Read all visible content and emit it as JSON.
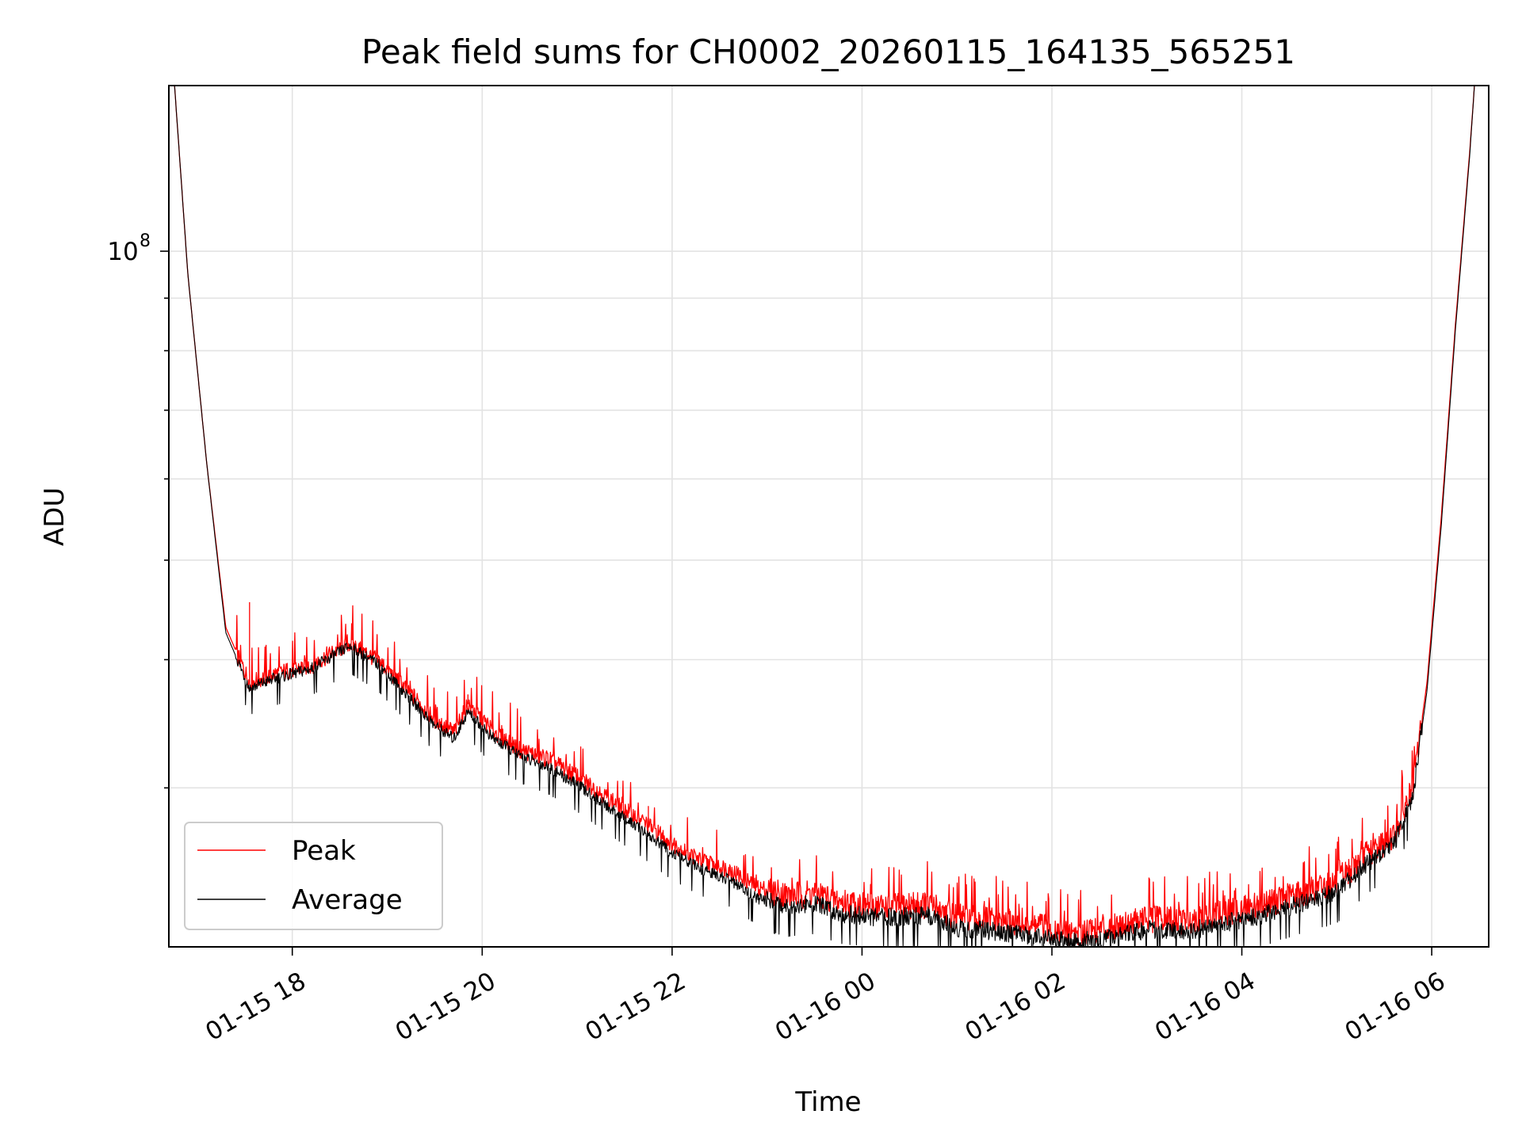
{
  "chart_data": {
    "type": "line",
    "title": "Peak field sums for CH0002_20260115_164135_565251",
    "xlabel": "Time",
    "ylabel": "ADU",
    "yscale": "log",
    "grid": true,
    "legend_position": "lower-left",
    "x_start_hours": 16.7,
    "x_end_hours": 30.6,
    "x_ticks": [
      {
        "hours": 18,
        "label": "01-15 18"
      },
      {
        "hours": 20,
        "label": "01-15 20"
      },
      {
        "hours": 22,
        "label": "01-15 22"
      },
      {
        "hours": 24,
        "label": "01-16 00"
      },
      {
        "hours": 26,
        "label": "01-16 02"
      },
      {
        "hours": 28,
        "label": "01-16 04"
      },
      {
        "hours": 30,
        "label": "01-16 06"
      }
    ],
    "ylim": [
      21000000,
      145000000
    ],
    "y_major_tick": {
      "value": 100000000,
      "base": "10",
      "exponent": "8"
    },
    "y_minor_ticks": [
      30000000,
      40000000,
      50000000,
      60000000,
      70000000,
      80000000,
      90000000,
      200000000
    ],
    "series": [
      {
        "name": "Peak",
        "color": "#ff0000",
        "points": [
          [
            16.76,
            145000000
          ],
          [
            16.9,
            95000000
          ],
          [
            17.1,
            62000000
          ],
          [
            17.3,
            43000000
          ],
          [
            17.55,
            38000000
          ],
          [
            17.8,
            38700000
          ],
          [
            18.2,
            39500000
          ],
          [
            18.6,
            41500000
          ],
          [
            18.9,
            40000000
          ],
          [
            19.2,
            37500000
          ],
          [
            19.5,
            35000000
          ],
          [
            19.7,
            34000000
          ],
          [
            19.85,
            36200000
          ],
          [
            20.1,
            34200000
          ],
          [
            20.4,
            32700000
          ],
          [
            20.7,
            32000000
          ],
          [
            21.0,
            30800000
          ],
          [
            21.4,
            29000000
          ],
          [
            21.7,
            27800000
          ],
          [
            22.0,
            26500000
          ],
          [
            22.3,
            25500000
          ],
          [
            22.6,
            25000000
          ],
          [
            22.9,
            24000000
          ],
          [
            23.2,
            23600000
          ],
          [
            23.5,
            23700000
          ],
          [
            23.8,
            23200000
          ],
          [
            24.2,
            23000000
          ],
          [
            24.7,
            23100000
          ],
          [
            25.0,
            22500000
          ],
          [
            25.4,
            22300000
          ],
          [
            25.8,
            22100000
          ],
          [
            26.2,
            21700000
          ],
          [
            26.6,
            22000000
          ],
          [
            27.0,
            22400000
          ],
          [
            27.4,
            22300000
          ],
          [
            27.8,
            22700000
          ],
          [
            28.2,
            23100000
          ],
          [
            28.6,
            23700000
          ],
          [
            29.0,
            24300000
          ],
          [
            29.3,
            25800000
          ],
          [
            29.6,
            27000000
          ],
          [
            29.8,
            30000000
          ],
          [
            29.95,
            38000000
          ],
          [
            30.1,
            55000000
          ],
          [
            30.25,
            85000000
          ],
          [
            30.4,
            125000000
          ],
          [
            30.45,
            145000000
          ]
        ]
      },
      {
        "name": "Average",
        "color": "#000000",
        "points": [
          [
            16.76,
            145000000
          ],
          [
            16.9,
            95000000
          ],
          [
            17.1,
            62000000
          ],
          [
            17.3,
            42500000
          ],
          [
            17.55,
            37500000
          ],
          [
            17.8,
            38300000
          ],
          [
            18.2,
            39200000
          ],
          [
            18.6,
            41200000
          ],
          [
            18.9,
            39600000
          ],
          [
            19.2,
            37000000
          ],
          [
            19.5,
            34500000
          ],
          [
            19.7,
            33500000
          ],
          [
            19.85,
            35600000
          ],
          [
            20.1,
            33600000
          ],
          [
            20.4,
            32200000
          ],
          [
            20.7,
            31400000
          ],
          [
            21.0,
            30200000
          ],
          [
            21.4,
            28400000
          ],
          [
            21.7,
            27200000
          ],
          [
            22.0,
            25900000
          ],
          [
            22.3,
            25000000
          ],
          [
            22.6,
            24400000
          ],
          [
            22.9,
            23400000
          ],
          [
            23.2,
            23000000
          ],
          [
            23.5,
            23100000
          ],
          [
            23.8,
            22600000
          ],
          [
            24.2,
            22400000
          ],
          [
            24.7,
            22500000
          ],
          [
            25.0,
            21900000
          ],
          [
            25.4,
            21700000
          ],
          [
            25.8,
            21500000
          ],
          [
            26.2,
            21200000
          ],
          [
            26.6,
            21400000
          ],
          [
            27.0,
            21800000
          ],
          [
            27.4,
            21700000
          ],
          [
            27.8,
            22100000
          ],
          [
            28.2,
            22500000
          ],
          [
            28.6,
            23100000
          ],
          [
            29.0,
            23700000
          ],
          [
            29.3,
            25200000
          ],
          [
            29.6,
            26400000
          ],
          [
            29.8,
            29400000
          ],
          [
            29.95,
            37300000
          ],
          [
            30.1,
            54000000
          ],
          [
            30.25,
            84000000
          ],
          [
            30.4,
            124000000
          ],
          [
            30.45,
            145000000
          ]
        ]
      }
    ]
  }
}
